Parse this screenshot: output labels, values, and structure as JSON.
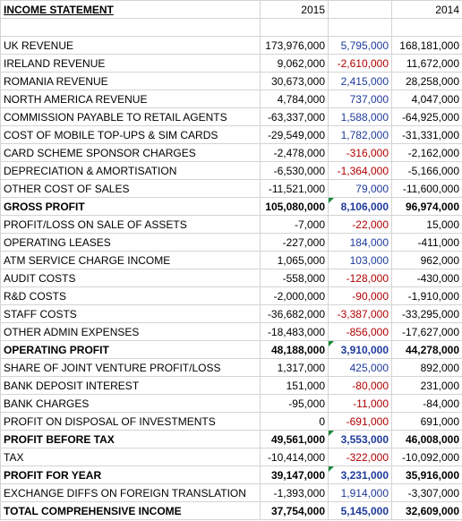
{
  "header": {
    "title": "INCOME STATEMENT",
    "year_a": "2015",
    "year_b": "2014"
  },
  "rows": [
    {
      "label": "UK REVENUE",
      "a": "173,976,000",
      "change": "5,795,000",
      "b": "168,181,000"
    },
    {
      "label": "IRELAND REVENUE",
      "a": "9,062,000",
      "change": "-2,610,000",
      "b": "11,672,000"
    },
    {
      "label": "ROMANIA REVENUE",
      "a": "30,673,000",
      "change": "2,415,000",
      "b": "28,258,000"
    },
    {
      "label": "NORTH AMERICA REVENUE",
      "a": "4,784,000",
      "change": "737,000",
      "b": "4,047,000"
    },
    {
      "label": "COMMISSION PAYABLE TO RETAIL AGENTS",
      "a": "-63,337,000",
      "change": "1,588,000",
      "b": "-64,925,000"
    },
    {
      "label": "COST OF MOBILE TOP-UPS & SIM CARDS",
      "a": "-29,549,000",
      "change": "1,782,000",
      "b": "-31,331,000"
    },
    {
      "label": "CARD SCHEME SPONSOR CHARGES",
      "a": "-2,478,000",
      "change": "-316,000",
      "b": "-2,162,000"
    },
    {
      "label": "DEPRECIATION & AMORTISATION",
      "a": "-6,530,000",
      "change": "-1,364,000",
      "b": "-5,166,000"
    },
    {
      "label": "OTHER COST OF SALES",
      "a": "-11,521,000",
      "change": "79,000",
      "b": "-11,600,000"
    },
    {
      "label": "GROSS PROFIT",
      "a": "105,080,000",
      "change": "8,106,000",
      "b": "96,974,000",
      "bold": true,
      "flag": true
    },
    {
      "label": "PROFIT/LOSS ON SALE OF ASSETS",
      "a": "-7,000",
      "change": "-22,000",
      "b": "15,000"
    },
    {
      "label": "OPERATING LEASES",
      "a": "-227,000",
      "change": "184,000",
      "b": "-411,000"
    },
    {
      "label": "ATM SERVICE CHARGE INCOME",
      "a": "1,065,000",
      "change": "103,000",
      "b": "962,000"
    },
    {
      "label": "AUDIT COSTS",
      "a": "-558,000",
      "change": "-128,000",
      "b": "-430,000"
    },
    {
      "label": "R&D COSTS",
      "a": "-2,000,000",
      "change": "-90,000",
      "b": "-1,910,000"
    },
    {
      "label": "STAFF COSTS",
      "a": "-36,682,000",
      "change": "-3,387,000",
      "b": "-33,295,000"
    },
    {
      "label": "OTHER ADMIN EXPENSES",
      "a": "-18,483,000",
      "change": "-856,000",
      "b": "-17,627,000"
    },
    {
      "label": "OPERATING PROFIT",
      "a": "48,188,000",
      "change": "3,910,000",
      "b": "44,278,000",
      "bold": true,
      "flag": true
    },
    {
      "label": "SHARE OF JOINT VENTURE PROFIT/LOSS",
      "a": "1,317,000",
      "change": "425,000",
      "b": "892,000"
    },
    {
      "label": "BANK DEPOSIT INTEREST",
      "a": "151,000",
      "change": "-80,000",
      "b": "231,000"
    },
    {
      "label": "BANK CHARGES",
      "a": "-95,000",
      "change": "-11,000",
      "b": "-84,000"
    },
    {
      "label": "PROFIT ON DISPOSAL OF INVESTMENTS",
      "a": "0",
      "change": "-691,000",
      "b": "691,000"
    },
    {
      "label": "PROFIT BEFORE TAX",
      "a": "49,561,000",
      "change": "3,553,000",
      "b": "46,008,000",
      "bold": true,
      "flag": true
    },
    {
      "label": "TAX",
      "a": "-10,414,000",
      "change": "-322,000",
      "b": "-10,092,000"
    },
    {
      "label": "PROFIT FOR YEAR",
      "a": "39,147,000",
      "change": "3,231,000",
      "b": "35,916,000",
      "bold": true,
      "flag": true
    },
    {
      "label": "EXCHANGE DIFFS ON FOREIGN TRANSLATION",
      "a": "-1,393,000",
      "change": "1,914,000",
      "b": "-3,307,000"
    },
    {
      "label": "TOTAL COMPREHENSIVE INCOME",
      "a": "37,754,000",
      "change": "5,145,000",
      "b": "32,609,000",
      "bold": true
    }
  ]
}
